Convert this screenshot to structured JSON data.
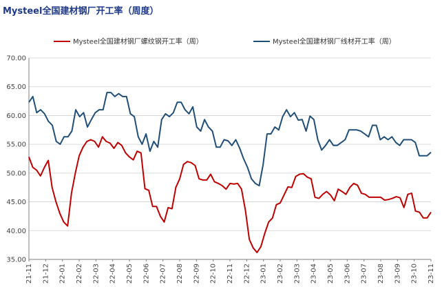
{
  "chart_data": {
    "type": "line",
    "title": "Mysteel全国建材钢厂开工率（周度）",
    "ylim": [
      35,
      70
    ],
    "yticks": [
      "35.00",
      "40.00",
      "45.00",
      "50.00",
      "55.00",
      "60.00",
      "65.00",
      "70.00"
    ],
    "xticks": [
      "21-11",
      "21-12",
      "22-01",
      "22-02",
      "22-03",
      "22-04",
      "22-05",
      "22-06",
      "22-07",
      "22-08",
      "22-09",
      "22-10",
      "22-11",
      "22-12",
      "23-01",
      "23-02",
      "23-03",
      "23-04",
      "23-05",
      "23-06",
      "23-07",
      "23-08",
      "23-09",
      "23-10",
      "23-11"
    ],
    "grid": true,
    "legend_position": "top",
    "series": [
      {
        "name": "Mysteel全国建材钢厂螺纹钢开工率（周）",
        "color": "#c00000",
        "values": [
          52.8,
          51.0,
          50.5,
          49.5,
          51.0,
          52.2,
          47.5,
          45.0,
          43.0,
          41.5,
          40.8,
          46.5,
          50.0,
          53.0,
          54.5,
          55.5,
          55.8,
          55.5,
          54.5,
          56.3,
          55.5,
          55.2,
          54.3,
          55.3,
          54.8,
          53.5,
          52.8,
          52.3,
          53.8,
          53.5,
          47.3,
          47.0,
          44.2,
          44.2,
          42.5,
          41.5,
          44.0,
          43.8,
          47.5,
          49.0,
          51.5,
          52.0,
          51.8,
          51.3,
          49.0,
          48.8,
          48.8,
          49.8,
          48.5,
          48.2,
          47.8,
          47.2,
          48.2,
          48.1,
          48.2,
          47.2,
          43.5,
          38.5,
          37.0,
          36.2,
          37.2,
          39.5,
          41.5,
          42.2,
          44.5,
          44.8,
          46.2,
          47.6,
          47.5,
          49.4,
          49.8,
          49.9,
          49.3,
          49.0,
          45.8,
          45.6,
          46.3,
          46.8,
          46.2,
          45.2,
          47.2,
          46.8,
          46.3,
          47.5,
          48.2,
          47.9,
          46.5,
          46.3,
          45.8,
          45.8,
          45.8,
          45.8,
          45.3,
          45.4,
          45.6,
          45.9,
          45.7,
          44.0,
          46.3,
          46.5,
          43.4,
          43.2,
          42.2,
          42.2,
          43.2
        ]
      },
      {
        "name": "Mysteel全国建材钢厂线材开工率（周）",
        "color": "#1f4e79",
        "values": [
          62.3,
          63.3,
          60.5,
          61.0,
          60.3,
          59.0,
          58.3,
          55.5,
          55.0,
          56.3,
          56.3,
          57.3,
          61.0,
          59.8,
          60.5,
          58.0,
          59.3,
          60.5,
          61.0,
          61.0,
          64.0,
          64.0,
          63.3,
          63.8,
          63.3,
          63.3,
          60.3,
          59.8,
          56.3,
          55.0,
          56.8,
          53.8,
          55.5,
          54.5,
          59.3,
          60.3,
          59.8,
          60.5,
          62.3,
          62.3,
          61.0,
          60.3,
          61.5,
          58.0,
          57.3,
          59.3,
          58.0,
          57.3,
          54.5,
          54.5,
          55.8,
          55.6,
          54.8,
          55.8,
          54.3,
          52.5,
          51.0,
          49.0,
          48.2,
          47.8,
          51.5,
          56.8,
          56.8,
          58.0,
          57.5,
          59.8,
          61.0,
          59.8,
          60.5,
          59.2,
          59.3,
          57.3,
          59.9,
          59.3,
          55.8,
          54.0,
          54.8,
          55.8,
          54.8,
          54.8,
          55.3,
          55.8,
          57.5,
          57.5,
          57.5,
          57.3,
          56.8,
          56.3,
          58.3,
          58.3,
          55.8,
          56.3,
          55.8,
          56.3,
          55.3,
          54.8,
          55.8,
          55.8,
          55.8,
          55.3,
          53.0,
          53.0,
          53.0,
          53.6
        ]
      }
    ]
  }
}
